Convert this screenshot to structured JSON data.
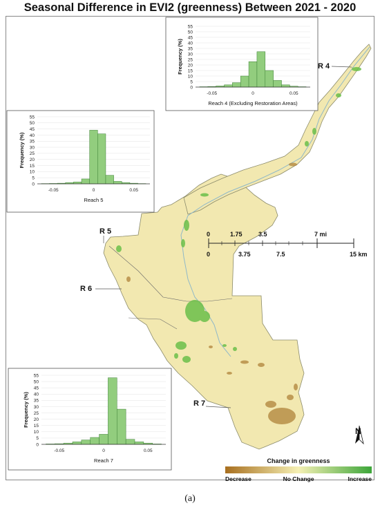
{
  "title": "Seasonal Difference in EVI2 (greenness) Between 2021 - 2020",
  "caption": "(a)",
  "reach_labels": [
    "R 4",
    "R 5",
    "R 6",
    "R 7"
  ],
  "scale_bar": {
    "miles_labels": [
      "0",
      "1.75",
      "3.5",
      "7 mi"
    ],
    "km_labels": [
      "0",
      "3.75",
      "7.5",
      "15 km"
    ]
  },
  "north_arrow": {
    "label": "N"
  },
  "legend": {
    "title": "Change in greenness",
    "labels": [
      "Decrease",
      "No Change",
      "Increase"
    ],
    "colors": {
      "decrease": "#a86f1f",
      "no_change": "#f5f0b4",
      "increase": "#3da63a"
    }
  },
  "histograms": [
    {
      "id": "reach4",
      "xlabel": "Reach 4 (Excluding Restoration Areas)",
      "ylabel": "Frequency (%)",
      "yticks": [
        "0",
        "5",
        "10",
        "15",
        "20",
        "25",
        "30",
        "35",
        "40",
        "45",
        "50",
        "55"
      ],
      "xticks": [
        "-0.05",
        "0",
        "0.05"
      ]
    },
    {
      "id": "reach5",
      "xlabel": "Reach 5",
      "ylabel": "Frequency (%)",
      "yticks": [
        "0",
        "5",
        "10",
        "15",
        "20",
        "25",
        "30",
        "35",
        "40",
        "45",
        "50",
        "55"
      ],
      "xticks": [
        "-0.05",
        "0",
        "0.05"
      ]
    },
    {
      "id": "reach7",
      "xlabel": "Reach 7",
      "ylabel": "Frequency (%)",
      "yticks": [
        "0",
        "5",
        "10",
        "15",
        "20",
        "25",
        "30",
        "35",
        "40",
        "45",
        "50",
        "55"
      ],
      "xticks": [
        "-0.05",
        "0",
        "0.05"
      ]
    }
  ],
  "chart_data": [
    {
      "type": "bar",
      "xlabel": "Reach 4 (Excluding Restoration Areas)",
      "ylabel": "Frequency (%)",
      "ylim": [
        0,
        55
      ],
      "xlim": [
        -0.07,
        0.07
      ],
      "bin_width": 0.01,
      "bin_centers": [
        -0.06,
        -0.05,
        -0.04,
        -0.03,
        -0.02,
        -0.01,
        0.0,
        0.01,
        0.02,
        0.03,
        0.04,
        0.05,
        0.06
      ],
      "values": [
        0.3,
        0.5,
        1,
        2,
        4,
        10,
        23,
        32,
        15,
        6,
        2,
        0.8,
        0.3
      ],
      "color": "#92cd7e"
    },
    {
      "type": "bar",
      "xlabel": "Reach 5",
      "ylabel": "Frequency (%)",
      "ylim": [
        0,
        55
      ],
      "xlim": [
        -0.07,
        0.07
      ],
      "bin_width": 0.01,
      "bin_centers": [
        -0.06,
        -0.05,
        -0.04,
        -0.03,
        -0.02,
        -0.01,
        0.0,
        0.01,
        0.02,
        0.03,
        0.04,
        0.05,
        0.06
      ],
      "values": [
        0.2,
        0.3,
        0.5,
        1,
        1.5,
        4,
        44,
        41,
        7,
        2,
        1,
        0.5,
        0.2
      ],
      "color": "#92cd7e"
    },
    {
      "type": "bar",
      "xlabel": "Reach 7",
      "ylabel": "Frequency (%)",
      "ylim": [
        0,
        55
      ],
      "xlim": [
        -0.07,
        0.07
      ],
      "bin_width": 0.01,
      "bin_centers": [
        -0.06,
        -0.05,
        -0.04,
        -0.03,
        -0.02,
        -0.01,
        0.0,
        0.01,
        0.02,
        0.03,
        0.04,
        0.05,
        0.06
      ],
      "values": [
        0.3,
        0.5,
        1,
        2,
        3.5,
        5.5,
        8,
        53,
        28,
        4,
        2,
        1,
        0.3
      ],
      "color": "#92cd7e"
    }
  ]
}
